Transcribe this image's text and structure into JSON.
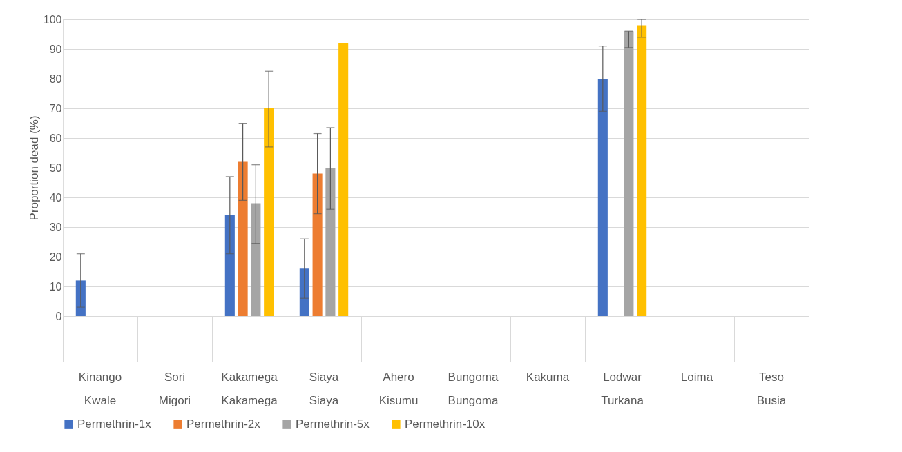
{
  "chart_data": {
    "type": "bar",
    "ylabel": "Proportion dead (%)",
    "categories": [
      "Kinango\nKwale",
      "Sori\nMigori",
      "Kakamega\nKakamega",
      "Siaya\nSiaya",
      "Ahero\nKisumu",
      "Bungoma\nBungoma",
      "Kakuma",
      "Lodwar\nTurkana",
      "Loima",
      "Teso\nBusia"
    ],
    "series": [
      {
        "name": "Permethrin-1x",
        "color": "#4472c4",
        "values": [
          12,
          null,
          34,
          16,
          null,
          null,
          null,
          80,
          null,
          null
        ],
        "errors": [
          [
            3,
            21
          ],
          null,
          [
            21,
            47
          ],
          [
            6,
            26
          ],
          null,
          null,
          null,
          [
            69,
            91
          ],
          null,
          null
        ]
      },
      {
        "name": "Permethrin-2x",
        "color": "#ed7d31",
        "values": [
          null,
          null,
          52,
          48,
          null,
          null,
          null,
          null,
          null,
          null
        ],
        "errors": [
          null,
          null,
          [
            39,
            65
          ],
          [
            34.5,
            61.5
          ],
          null,
          null,
          null,
          null,
          null,
          null
        ]
      },
      {
        "name": "Permethrin-5x",
        "color": "#a5a5a5",
        "values": [
          null,
          null,
          38,
          50,
          null,
          null,
          null,
          96,
          null,
          null
        ],
        "errors": [
          null,
          null,
          [
            24.5,
            51
          ],
          [
            36,
            63.5
          ],
          null,
          null,
          null,
          [
            90.5,
            96
          ],
          null,
          null
        ]
      },
      {
        "name": "Permethrin-10x",
        "color": "#ffc000",
        "values": [
          null,
          null,
          70,
          92,
          null,
          null,
          null,
          98,
          null,
          null
        ],
        "errors": [
          null,
          null,
          [
            57,
            82.5
          ],
          null,
          null,
          null,
          null,
          [
            94,
            100
          ],
          null,
          null
        ]
      }
    ],
    "ylim": [
      0,
      100
    ],
    "yticks": [
      0,
      10,
      20,
      30,
      40,
      50,
      60,
      70,
      80,
      90,
      100
    ],
    "grid": "y",
    "legend": "bottom"
  }
}
